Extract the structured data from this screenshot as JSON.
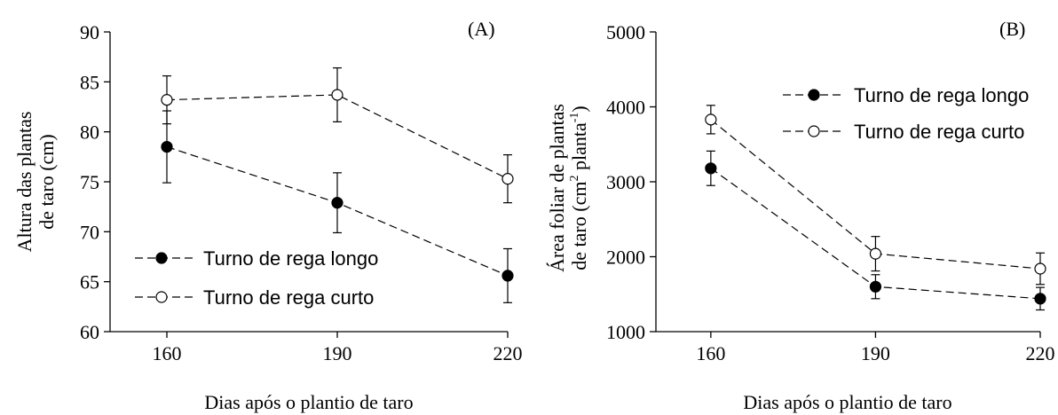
{
  "chart_data": [
    {
      "type": "line",
      "panel_label": "(A)",
      "xlabel": "Dias após o plantio de taro",
      "ylabel_lines": [
        "Altura das plantas",
        "de taro (cm)"
      ],
      "x": [
        160,
        190,
        220
      ],
      "xticks": [
        "160",
        "190",
        "220"
      ],
      "xlim": [
        150,
        220
      ],
      "ylim": [
        60,
        90
      ],
      "yticks": [
        "60",
        "65",
        "70",
        "75",
        "80",
        "85",
        "90"
      ],
      "ytick_values": [
        60,
        65,
        70,
        75,
        80,
        85,
        90
      ],
      "legend_position": "bottom-left",
      "series": [
        {
          "name": "Turno de rega longo",
          "marker": "filled-circle",
          "values": [
            78.5,
            72.9,
            65.6
          ],
          "err": [
            3.6,
            3.0,
            2.7
          ]
        },
        {
          "name": "Turno de rega curto",
          "marker": "open-circle",
          "values": [
            83.2,
            83.7,
            75.3
          ],
          "err": [
            2.4,
            2.7,
            2.4
          ]
        }
      ]
    },
    {
      "type": "line",
      "panel_label": "(B)",
      "xlabel": "Dias após o plantio de taro",
      "ylabel_line1": "Área foliar de plantas",
      "ylabel_line2": {
        "a": "de taro (cm",
        "b": "2",
        "c": " planta",
        "d": "-1",
        "e": ")"
      },
      "x": [
        160,
        190,
        220
      ],
      "xticks": [
        "160",
        "190",
        "220"
      ],
      "xlim": [
        150,
        220
      ],
      "ylim": [
        1000,
        5000
      ],
      "yticks": [
        "1000",
        "2000",
        "3000",
        "4000",
        "5000"
      ],
      "ytick_values": [
        1000,
        2000,
        3000,
        4000,
        5000
      ],
      "legend_position": "top-right",
      "series": [
        {
          "name": "Turno de rega longo",
          "marker": "filled-circle",
          "values": [
            3180,
            1600,
            1440
          ],
          "err": [
            230,
            160,
            150
          ]
        },
        {
          "name": "Turno de rega curto",
          "marker": "open-circle",
          "values": [
            3830,
            2040,
            1840
          ],
          "err": [
            190,
            230,
            210
          ]
        }
      ]
    }
  ]
}
